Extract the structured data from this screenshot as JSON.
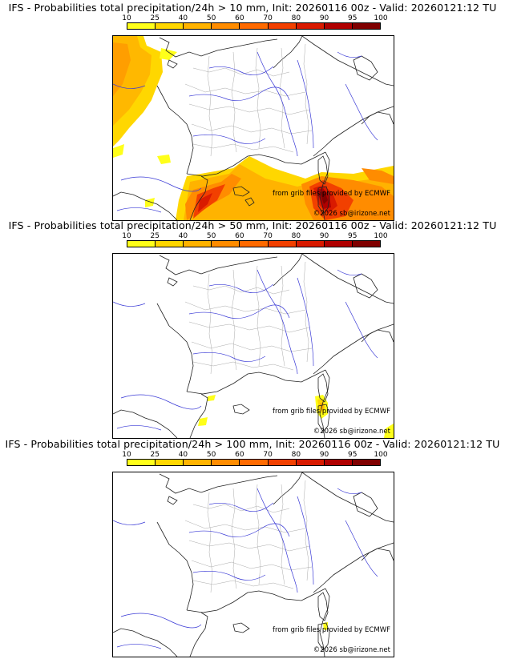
{
  "colorbar": {
    "ticks": [
      "10",
      "25",
      "40",
      "50",
      "60",
      "70",
      "80",
      "90",
      "95",
      "100"
    ],
    "colors": [
      "#ffff1a",
      "#ffd700",
      "#ffb300",
      "#ff8c00",
      "#ff6a00",
      "#f24000",
      "#d91a00",
      "#b00000",
      "#800000"
    ]
  },
  "credits": {
    "provider": "from grib files provided by ECMWF",
    "copyright": "©2026 sb@irizone.net"
  },
  "panels": [
    {
      "title": "IFS - Probabilities total precipitation/24h > 10 mm, Init: 20260116 00z - Valid: 20260121:12 TU",
      "threshold_mm": 10
    },
    {
      "title": "IFS - Probabilities total precipitation/24h > 50 mm, Init: 20260116 00z - Valid: 20260121:12 TU",
      "threshold_mm": 50
    },
    {
      "title": "IFS - Probabilities total precipitation/24h > 100 mm, Init: 20260116 00z - Valid: 20260121:12 TU",
      "threshold_mm": 100
    }
  ]
}
